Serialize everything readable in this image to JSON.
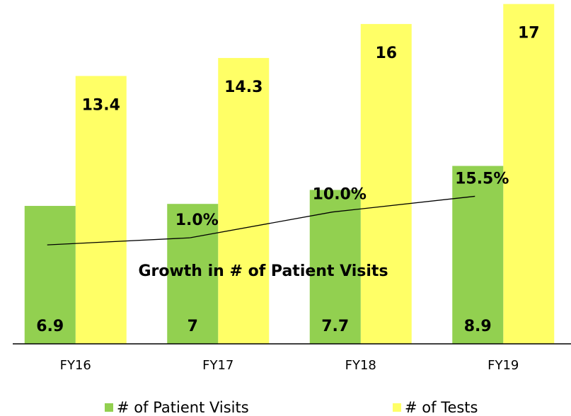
{
  "chart_data": {
    "type": "bar",
    "categories": [
      "FY16",
      "FY17",
      "FY18",
      "FY19"
    ],
    "series": [
      {
        "name": "# of Patient Visits",
        "color": "#92d050",
        "values": [
          6.9,
          7.0,
          7.7,
          8.9
        ]
      },
      {
        "name": "# of Tests",
        "color": "#ffff66",
        "values": [
          13.4,
          14.3,
          16.0,
          17.0
        ]
      }
    ],
    "growth": {
      "name": "Growth in # of Patient Visits",
      "axis": "y2",
      "color": "#000000",
      "values": [
        null,
        1.0,
        10.0,
        15.5
      ],
      "value_labels": [
        null,
        "1.0%",
        "10.0%",
        "15.5%"
      ]
    },
    "ylim": [
      0,
      17.2
    ],
    "y2lim": [
      -36,
      84
    ]
  }
}
